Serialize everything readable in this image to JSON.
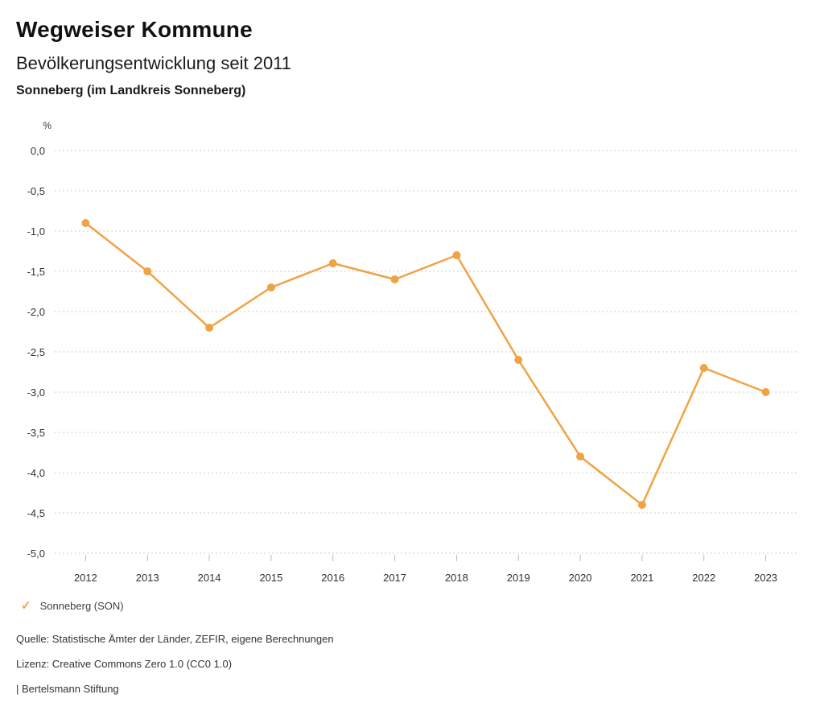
{
  "header": {
    "brand": "Wegweiser Kommune",
    "title": "Bevölkerungsentwicklung seit 2011",
    "subtitle": "Sonneberg (im Landkreis Sonneberg)"
  },
  "chart_data": {
    "type": "line",
    "title": "Bevölkerungsentwicklung seit 2011",
    "unit_label": "%",
    "categories": [
      "2012",
      "2013",
      "2014",
      "2015",
      "2016",
      "2017",
      "2018",
      "2019",
      "2020",
      "2021",
      "2022",
      "2023"
    ],
    "series": [
      {
        "name": "Sonneberg (SON)",
        "values": [
          -0.9,
          -1.5,
          -2.2,
          -1.7,
          -1.4,
          -1.6,
          -1.3,
          -2.6,
          -3.8,
          -4.4,
          -2.7,
          -3.0
        ],
        "color": "#F0A343"
      }
    ],
    "ylim": [
      -5.0,
      0.0
    ],
    "ytick_values": [
      0.0,
      -0.5,
      -1.0,
      -1.5,
      -2.0,
      -2.5,
      -3.0,
      -3.5,
      -4.0,
      -4.5,
      -5.0
    ],
    "ytick_labels": [
      "0,0",
      "-0,5",
      "-1,0",
      "-1,5",
      "-2,0",
      "-2,5",
      "-3,0",
      "-3,5",
      "-4,0",
      "-4,5",
      "-5,0"
    ],
    "grid": "horizontal-dotted",
    "legend_position": "bottom-left"
  },
  "legend": {
    "check_icon": "✓",
    "label": "Sonneberg (SON)"
  },
  "footer": {
    "source": "Quelle: Statistische Ämter der Länder, ZEFIR, eigene Berechnungen",
    "license": "Lizenz: Creative Commons Zero 1.0 (CC0 1.0)",
    "attribution": "| Bertelsmann Stiftung"
  },
  "colors": {
    "accent": "#F0A343",
    "title_text": "#111111",
    "body_text": "#333333",
    "gridline": "#cccccc",
    "tick": "#bbbbbb",
    "background": "#ffffff"
  }
}
